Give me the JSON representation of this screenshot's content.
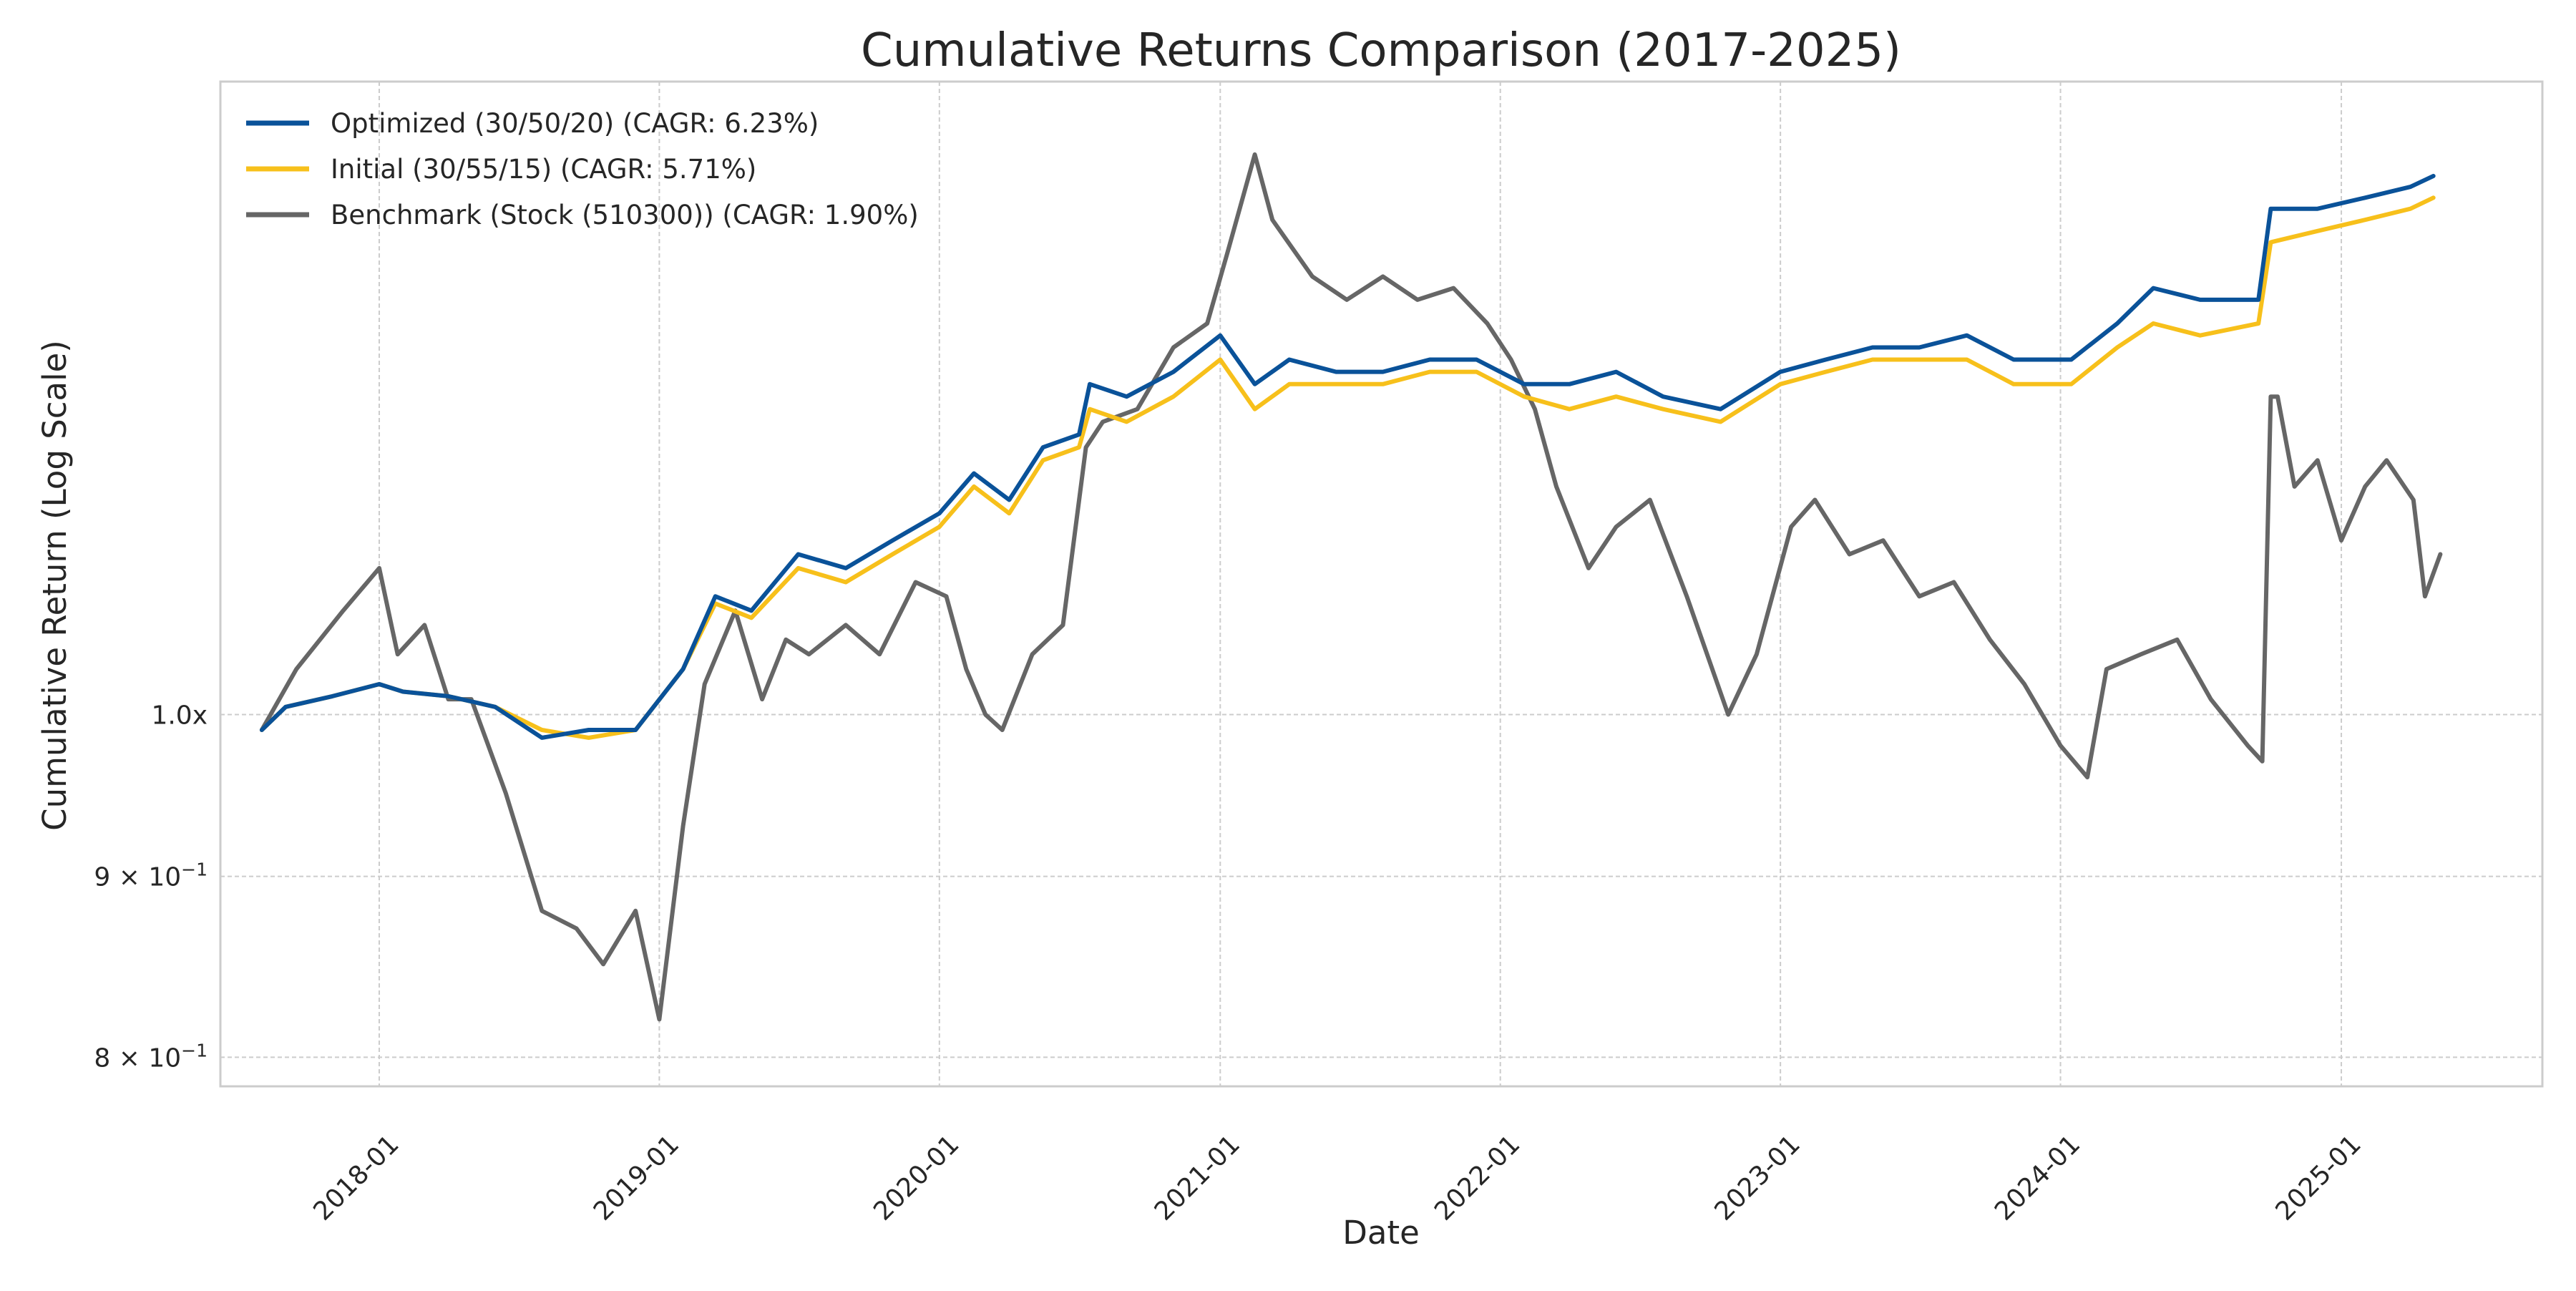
{
  "chart_data": {
    "type": "line",
    "title": "Cumulative Returns Comparison (2017-2025)",
    "xlabel": "Date",
    "ylabel": "Cumulative Return (Log Scale)",
    "yscale": "log",
    "grid": true,
    "legend_position": "top-left",
    "xlim": [
      "2017-06-08",
      "2025-09-20"
    ],
    "ylim": [
      0.785,
      1.51
    ],
    "x_ticks": [
      {
        "date": "2018-01-01",
        "label": "2018-01"
      },
      {
        "date": "2019-01-01",
        "label": "2019-01"
      },
      {
        "date": "2020-01-01",
        "label": "2020-01"
      },
      {
        "date": "2021-01-01",
        "label": "2021-01"
      },
      {
        "date": "2022-01-01",
        "label": "2022-01"
      },
      {
        "date": "2023-01-01",
        "label": "2023-01"
      },
      {
        "date": "2024-01-01",
        "label": "2024-01"
      },
      {
        "date": "2025-01-01",
        "label": "2025-01"
      }
    ],
    "y_ticks": [
      {
        "value": 1.0,
        "label": "1.0x"
      },
      {
        "value": 0.9,
        "label": "9 × 10",
        "exponent": "−1"
      },
      {
        "value": 0.8,
        "label": "8 × 10",
        "exponent": "−1"
      }
    ],
    "series": [
      {
        "name": "Optimized (30/50/20) (CAGR: 6.23%)",
        "color": "#0a5299",
        "x": [
          "2017-08-01",
          "2017-09-01",
          "2017-11-01",
          "2018-01-01",
          "2018-02-01",
          "2018-04-01",
          "2018-06-01",
          "2018-08-01",
          "2018-10-01",
          "2018-12-01",
          "2019-02-01",
          "2019-03-15",
          "2019-05-01",
          "2019-07-01",
          "2019-09-01",
          "2019-11-01",
          "2020-01-01",
          "2020-02-15",
          "2020-04-01",
          "2020-05-15",
          "2020-07-01",
          "2020-07-15",
          "2020-09-01",
          "2020-11-01",
          "2021-01-01",
          "2021-02-15",
          "2021-04-01",
          "2021-06-01",
          "2021-08-01",
          "2021-10-01",
          "2021-12-01",
          "2022-02-01",
          "2022-04-01",
          "2022-06-01",
          "2022-08-01",
          "2022-10-15",
          "2023-01-01",
          "2023-03-01",
          "2023-05-01",
          "2023-07-01",
          "2023-09-01",
          "2023-11-01",
          "2024-01-15",
          "2024-03-15",
          "2024-05-01",
          "2024-07-01",
          "2024-09-15",
          "2024-10-01",
          "2024-12-01",
          "2025-02-01",
          "2025-04-01",
          "2025-05-01"
        ],
        "values": [
          0.99,
          1.005,
          1.012,
          1.02,
          1.015,
          1.012,
          1.005,
          0.985,
          0.99,
          0.99,
          1.03,
          1.08,
          1.07,
          1.11,
          1.1,
          1.12,
          1.14,
          1.17,
          1.15,
          1.19,
          1.2,
          1.24,
          1.23,
          1.25,
          1.28,
          1.24,
          1.26,
          1.25,
          1.25,
          1.26,
          1.26,
          1.24,
          1.24,
          1.25,
          1.23,
          1.22,
          1.25,
          1.26,
          1.27,
          1.27,
          1.28,
          1.26,
          1.26,
          1.29,
          1.32,
          1.31,
          1.31,
          1.39,
          1.39,
          1.4,
          1.41,
          1.42
        ]
      },
      {
        "name": "Initial (30/55/15) (CAGR: 5.71%)",
        "color": "#f7c01b",
        "x": [
          "2017-08-01",
          "2017-09-01",
          "2017-11-01",
          "2018-01-01",
          "2018-02-01",
          "2018-04-01",
          "2018-06-01",
          "2018-08-01",
          "2018-10-01",
          "2018-12-01",
          "2019-02-01",
          "2019-03-15",
          "2019-05-01",
          "2019-07-01",
          "2019-09-01",
          "2019-11-01",
          "2020-01-01",
          "2020-02-15",
          "2020-04-01",
          "2020-05-15",
          "2020-07-01",
          "2020-07-15",
          "2020-09-01",
          "2020-11-01",
          "2021-01-01",
          "2021-02-15",
          "2021-04-01",
          "2021-06-01",
          "2021-08-01",
          "2021-10-01",
          "2021-12-01",
          "2022-02-01",
          "2022-04-01",
          "2022-06-01",
          "2022-08-01",
          "2022-10-15",
          "2023-01-01",
          "2023-03-01",
          "2023-05-01",
          "2023-07-01",
          "2023-09-01",
          "2023-11-01",
          "2024-01-15",
          "2024-03-15",
          "2024-05-01",
          "2024-07-01",
          "2024-09-15",
          "2024-10-01",
          "2024-12-01",
          "2025-02-01",
          "2025-04-01",
          "2025-05-01"
        ],
        "values": [
          0.99,
          1.005,
          1.012,
          1.02,
          1.015,
          1.012,
          1.005,
          0.99,
          0.985,
          0.99,
          1.03,
          1.075,
          1.065,
          1.1,
          1.09,
          1.11,
          1.13,
          1.16,
          1.14,
          1.18,
          1.19,
          1.22,
          1.21,
          1.23,
          1.26,
          1.22,
          1.24,
          1.24,
          1.24,
          1.25,
          1.25,
          1.23,
          1.22,
          1.23,
          1.22,
          1.21,
          1.24,
          1.25,
          1.26,
          1.26,
          1.26,
          1.24,
          1.24,
          1.27,
          1.29,
          1.28,
          1.29,
          1.36,
          1.37,
          1.38,
          1.39,
          1.4
        ]
      },
      {
        "name": "Benchmark (Stock (510300)) (CAGR: 1.90%)",
        "color": "#666666",
        "x": [
          "2017-08-01",
          "2017-09-15",
          "2017-11-15",
          "2018-01-01",
          "2018-01-25",
          "2018-03-01",
          "2018-04-01",
          "2018-05-01",
          "2018-06-15",
          "2018-08-01",
          "2018-09-15",
          "2018-10-20",
          "2018-12-01",
          "2019-01-01",
          "2019-02-01",
          "2019-03-01",
          "2019-04-10",
          "2019-05-15",
          "2019-06-15",
          "2019-07-15",
          "2019-09-01",
          "2019-10-15",
          "2019-12-01",
          "2020-01-10",
          "2020-02-05",
          "2020-03-01",
          "2020-03-23",
          "2020-05-01",
          "2020-06-10",
          "2020-07-10",
          "2020-08-01",
          "2020-09-15",
          "2020-11-01",
          "2020-12-15",
          "2021-01-10",
          "2021-02-15",
          "2021-03-10",
          "2021-05-01",
          "2021-06-15",
          "2021-08-01",
          "2021-09-15",
          "2021-11-01",
          "2021-12-15",
          "2022-01-15",
          "2022-02-15",
          "2022-03-15",
          "2022-04-26",
          "2022-06-01",
          "2022-07-15",
          "2022-09-01",
          "2022-10-25",
          "2022-12-01",
          "2023-01-15",
          "2023-02-15",
          "2023-04-01",
          "2023-05-15",
          "2023-07-01",
          "2023-08-15",
          "2023-10-01",
          "2023-11-15",
          "2024-01-01",
          "2024-02-05",
          "2024-03-01",
          "2024-04-15",
          "2024-06-01",
          "2024-07-15",
          "2024-09-01",
          "2024-09-20",
          "2024-10-01",
          "2024-10-10",
          "2024-11-01",
          "2024-12-01",
          "2025-01-01",
          "2025-02-01",
          "2025-03-01",
          "2025-04-05",
          "2025-04-20",
          "2025-05-10"
        ],
        "values": [
          0.99,
          1.03,
          1.07,
          1.1,
          1.04,
          1.06,
          1.01,
          1.01,
          0.95,
          0.88,
          0.87,
          0.85,
          0.88,
          0.82,
          0.93,
          1.02,
          1.07,
          1.01,
          1.05,
          1.04,
          1.06,
          1.04,
          1.09,
          1.08,
          1.03,
          1.0,
          0.99,
          1.04,
          1.06,
          1.19,
          1.21,
          1.22,
          1.27,
          1.29,
          1.35,
          1.44,
          1.38,
          1.33,
          1.31,
          1.33,
          1.31,
          1.32,
          1.29,
          1.26,
          1.22,
          1.16,
          1.1,
          1.13,
          1.15,
          1.08,
          1.0,
          1.04,
          1.13,
          1.15,
          1.11,
          1.12,
          1.08,
          1.09,
          1.05,
          1.02,
          0.98,
          0.96,
          1.03,
          1.04,
          1.05,
          1.01,
          0.98,
          0.97,
          1.23,
          1.23,
          1.16,
          1.18,
          1.12,
          1.16,
          1.18,
          1.15,
          1.08,
          1.11
        ]
      }
    ]
  }
}
